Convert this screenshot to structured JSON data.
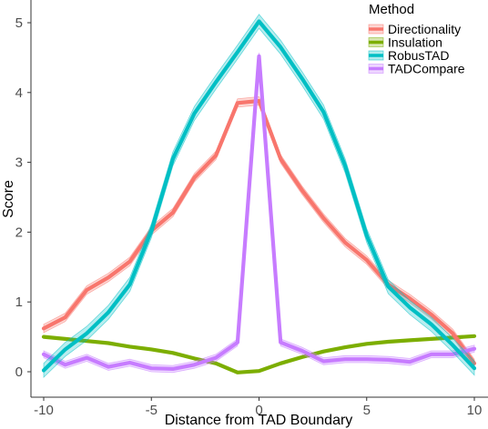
{
  "chart_data": {
    "type": "line",
    "title": "",
    "xlabel": "Distance from TAD Boundary",
    "ylabel": "Score",
    "xlim": [
      -10.5,
      10.5
    ],
    "ylim": [
      -0.38,
      5.2
    ],
    "x_ticks": [
      -10,
      -5,
      0,
      5,
      10
    ],
    "x_tick_labels": [
      "-10",
      "-5",
      "0",
      "5",
      "10"
    ],
    "y_ticks": [
      0,
      1,
      2,
      3,
      4,
      5
    ],
    "y_tick_labels": [
      "0",
      "1",
      "2",
      "3",
      "4",
      "5"
    ],
    "grid": false,
    "legend": {
      "title": "Method",
      "position": "top-right"
    },
    "x": [
      -10,
      -9,
      -8,
      -7,
      -6,
      -5,
      -4,
      -3,
      -2,
      -1,
      0,
      1,
      2,
      3,
      4,
      5,
      6,
      7,
      8,
      9,
      10
    ],
    "series": [
      {
        "name": "Directionality",
        "color": "#F8766D",
        "values": [
          0.62,
          0.78,
          1.17,
          1.35,
          1.58,
          2.02,
          2.28,
          2.78,
          3.1,
          3.85,
          3.88,
          3.05,
          2.6,
          2.2,
          1.85,
          1.6,
          1.25,
          1.05,
          0.82,
          0.55,
          0.12
        ],
        "band": 0.06
      },
      {
        "name": "Insulation",
        "color": "#7CAE00",
        "values": [
          0.5,
          0.47,
          0.44,
          0.41,
          0.36,
          0.32,
          0.27,
          0.19,
          0.12,
          -0.01,
          0.01,
          0.12,
          0.21,
          0.29,
          0.35,
          0.4,
          0.43,
          0.45,
          0.47,
          0.49,
          0.51
        ],
        "band": 0.0
      },
      {
        "name": "RobusTAD",
        "color": "#00BFC4",
        "values": [
          0.02,
          0.32,
          0.55,
          0.85,
          1.25,
          2.02,
          3.05,
          3.7,
          4.15,
          4.58,
          5.02,
          4.65,
          4.2,
          3.72,
          2.95,
          1.95,
          1.22,
          0.92,
          0.68,
          0.38,
          0.05
        ],
        "band": 0.1
      },
      {
        "name": "TADCompare",
        "color": "#C77CFF",
        "values": [
          0.25,
          0.1,
          0.2,
          0.07,
          0.13,
          0.05,
          0.04,
          0.1,
          0.2,
          0.42,
          4.52,
          0.42,
          0.3,
          0.15,
          0.18,
          0.18,
          0.17,
          0.14,
          0.25,
          0.25,
          0.33
        ],
        "band": 0.05
      }
    ]
  }
}
